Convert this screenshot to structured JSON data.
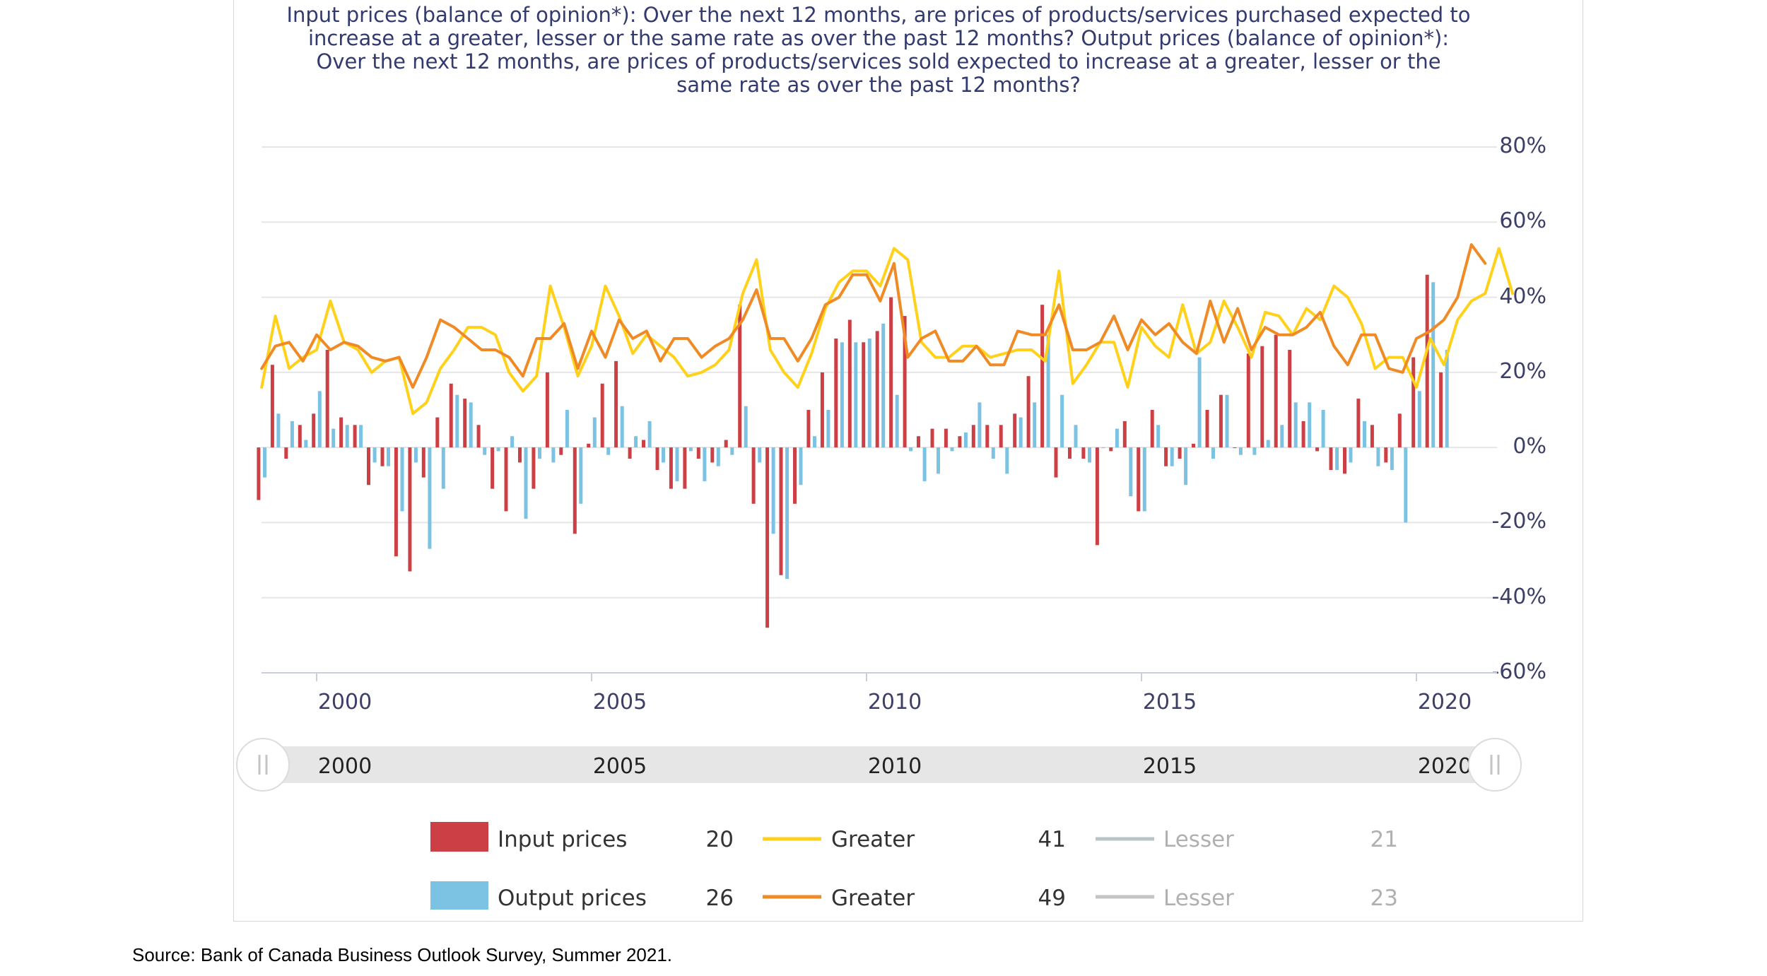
{
  "chart_data": {
    "type": "bar",
    "title_lines": [
      "Input prices (balance of opinion*): Over the next 12 months, are prices of products/services purchased expected to",
      "increase at a greater, lesser or the same rate as over the past 12 months? Output prices (balance of opinion*):",
      "Over the next 12 months, are prices of products/services sold expected to increase at a greater, lesser or the",
      "same rate as over the past 12 months?"
    ],
    "ylim": [
      -60,
      80
    ],
    "yticks": [
      "80%",
      "60%",
      "40%",
      "20%",
      "0%",
      "-20%",
      "-40%",
      "-60%"
    ],
    "xlim": [
      1999.0,
      2021.6
    ],
    "xticks": [
      "2000",
      "2005",
      "2010",
      "2015",
      "2020"
    ],
    "x_start": 1999.0,
    "x_step": 0.25,
    "grid": true,
    "legend_position": "bottom",
    "series": [
      {
        "name": "Input prices",
        "kind": "bar",
        "color": "#cc3f44",
        "values": [
          -14,
          22,
          -3,
          6,
          9,
          26,
          8,
          6,
          -10,
          -5,
          -29,
          -33,
          -8,
          8,
          17,
          13,
          6,
          -11,
          -17,
          -4,
          -11,
          20,
          -2,
          -23,
          1,
          17,
          23,
          -3,
          2,
          -6,
          -11,
          -11,
          -3,
          -4,
          2,
          38,
          -15,
          -48,
          -34,
          -15,
          10,
          20,
          29,
          34,
          28,
          31,
          40,
          35,
          3,
          5,
          5,
          3,
          6,
          6,
          6,
          9,
          19,
          38,
          -8,
          -3,
          -3,
          -26,
          -1,
          7,
          -17,
          10,
          -5,
          -3,
          1,
          10,
          14,
          0,
          25,
          27,
          30,
          26,
          7,
          -1,
          -6,
          -7,
          13,
          6,
          -4,
          9,
          24,
          46,
          20
        ],
        "offset": -0.055
      },
      {
        "name": "Output prices",
        "kind": "bar",
        "color": "#7cc3e3",
        "values": [
          -8,
          9,
          7,
          2,
          15,
          5,
          6,
          6,
          -4,
          -5,
          -17,
          -4,
          -27,
          -11,
          14,
          12,
          -2,
          -1,
          3,
          -19,
          -3,
          -4,
          10,
          -15,
          8,
          -2,
          11,
          3,
          7,
          -4,
          -9,
          -1,
          -9,
          -5,
          -2,
          11,
          -4,
          -23,
          -35,
          -10,
          3,
          10,
          28,
          28,
          29,
          33,
          14,
          -1,
          -9,
          -7,
          -1,
          4,
          12,
          -3,
          -7,
          8,
          12,
          30,
          14,
          6,
          -4,
          0,
          5,
          -13,
          -17,
          6,
          -5,
          -10,
          24,
          -3,
          14,
          -2,
          -2,
          2,
          6,
          12,
          12,
          10,
          -6,
          -4,
          7,
          -5,
          -6,
          -20,
          15,
          44,
          26
        ],
        "offset": 0.055
      },
      {
        "name": "Greater",
        "kind": "line",
        "color": "#ffd11a",
        "values": [
          16,
          35,
          21,
          24,
          26,
          39,
          28,
          26,
          20,
          23,
          24,
          9,
          12,
          21,
          26,
          32,
          32,
          30,
          20,
          15,
          19,
          43,
          32,
          19,
          27,
          43,
          35,
          25,
          30,
          27,
          24,
          19,
          20,
          22,
          26,
          41,
          50,
          26,
          20,
          16,
          25,
          37,
          44,
          47,
          47,
          43,
          53,
          50,
          28,
          24,
          24,
          27,
          27,
          24,
          25,
          26,
          26,
          23,
          47,
          17,
          22,
          28,
          28,
          16,
          32,
          27,
          24,
          38,
          25,
          28,
          39,
          32,
          24,
          36,
          35,
          30,
          37,
          34,
          43,
          40,
          33,
          21,
          24,
          24,
          16,
          29,
          22,
          34,
          39,
          41,
          53,
          41
        ],
        "stroke_width": 4
      },
      {
        "name": "Greater",
        "kind": "line",
        "color": "#f08a24",
        "values": [
          21,
          27,
          28,
          23,
          30,
          26,
          28,
          27,
          24,
          23,
          24,
          16,
          24,
          34,
          32,
          29,
          26,
          26,
          24,
          19,
          29,
          29,
          33,
          21,
          31,
          24,
          34,
          29,
          31,
          23,
          29,
          29,
          24,
          27,
          29,
          34,
          42,
          29,
          29,
          23,
          29,
          38,
          40,
          46,
          46,
          39,
          49,
          24,
          29,
          31,
          23,
          23,
          27,
          22,
          22,
          31,
          30,
          30,
          38,
          26,
          26,
          28,
          35,
          26,
          34,
          30,
          33,
          28,
          25,
          39,
          28,
          37,
          26,
          32,
          30,
          30,
          32,
          36,
          27,
          22,
          30,
          30,
          21,
          20,
          29,
          31,
          34,
          40,
          54,
          49
        ]
      }
    ],
    "legend": [
      {
        "swatch": "bar",
        "color": "#cc3f44",
        "label": "Input prices",
        "value": "20",
        "greater": {
          "color": "#ffd11a",
          "label": "Greater",
          "value": "41"
        },
        "lesser": {
          "color": "#b9c4c4",
          "label": "Lesser",
          "value": "21"
        }
      },
      {
        "swatch": "bar",
        "color": "#7cc3e3",
        "label": "Output prices",
        "value": "26",
        "greater": {
          "color": "#f08a24",
          "label": "Greater",
          "value": "49"
        },
        "lesser": {
          "color": "#c4c4c4",
          "label": "Lesser",
          "value": "23"
        }
      }
    ],
    "navigator_labels": [
      "2000",
      "2005",
      "2010",
      "2015",
      "2020"
    ]
  },
  "footer": {
    "source": "Source: Bank of Canada Business Outlook Survey, Summer 2021."
  }
}
